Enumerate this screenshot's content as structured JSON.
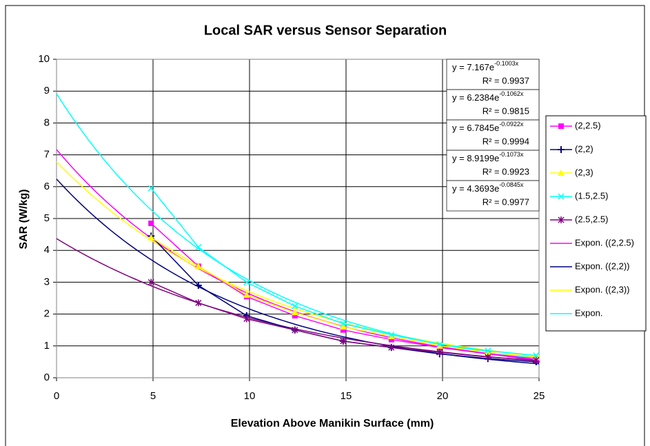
{
  "chart_data": {
    "type": "line",
    "title": "Local SAR versus Sensor Separation",
    "x_label": "Elevation Above Manikin Surface (mm)",
    "y_label": "SAR (W/kg)",
    "xlim": [
      0,
      25
    ],
    "xticks": [
      0,
      5,
      10,
      15,
      20,
      25
    ],
    "ylim": [
      0,
      10
    ],
    "yticks": [
      0,
      1,
      2,
      3,
      4,
      5,
      6,
      7,
      8,
      9,
      10
    ],
    "grid": true,
    "legend": "right",
    "x": [
      4.9,
      7.35,
      9.85,
      12.35,
      14.85,
      17.35,
      19.85,
      22.35,
      24.85
    ],
    "series": [
      {
        "name": "(2,2.5)",
        "color": "#ff00ff",
        "marker": "square",
        "values": [
          4.85,
          3.5,
          2.55,
          1.95,
          1.5,
          1.2,
          0.95,
          0.75,
          0.55
        ]
      },
      {
        "name": "(2,2)",
        "color": "#000080",
        "marker": "plus",
        "values": [
          4.45,
          2.9,
          1.95,
          1.5,
          1.15,
          0.95,
          0.75,
          0.6,
          0.5
        ]
      },
      {
        "name": "(2,3)",
        "color": "#ffff00",
        "marker": "triangle",
        "values": [
          4.4,
          3.5,
          2.6,
          2.05,
          1.6,
          1.3,
          1.0,
          0.8,
          0.65
        ]
      },
      {
        "name": "(1.5,2.5)",
        "color": "#00ffff",
        "marker": "cross",
        "values": [
          5.95,
          4.1,
          3.0,
          2.25,
          1.7,
          1.35,
          1.05,
          0.85,
          0.7
        ]
      },
      {
        "name": "(2.5,2.5)",
        "color": "#800080",
        "marker": "star",
        "values": [
          3.0,
          2.35,
          1.85,
          1.5,
          1.15,
          0.95,
          0.8,
          0.65,
          0.55
        ]
      }
    ],
    "trendlines": [
      {
        "name": "Expon. ((2,2.5)",
        "color": "#ff00ff",
        "a": 7.167,
        "b": -0.1003,
        "equation": "y = 7.167e",
        "exponent": "-0.1003x",
        "r2": "R² = 0.9937"
      },
      {
        "name": "Expon. ((2,2))",
        "color": "#000080",
        "a": 6.2384,
        "b": -0.1062,
        "equation": "y = 6.2384e",
        "exponent": "-0.1062x",
        "r2": "R² = 0.9815"
      },
      {
        "name": "Expon. ((2,3))",
        "color": "#ffff00",
        "a": 6.7845,
        "b": -0.0922,
        "equation": "y = 6.7845e",
        "exponent": "-0.0922x",
        "r2": "R² = 0.9994"
      },
      {
        "name": "Expon.",
        "color": "#00ffff",
        "a": 8.9199,
        "b": -0.1073,
        "equation": "y = 8.9199e",
        "exponent": "-0.1073x",
        "r2": "R² = 0.9923"
      },
      {
        "color": "#800080",
        "a": 4.3693,
        "b": -0.0845,
        "equation": "y = 4.3693e",
        "exponent": "-0.0845x",
        "r2": "R² = 0.9977"
      }
    ]
  }
}
